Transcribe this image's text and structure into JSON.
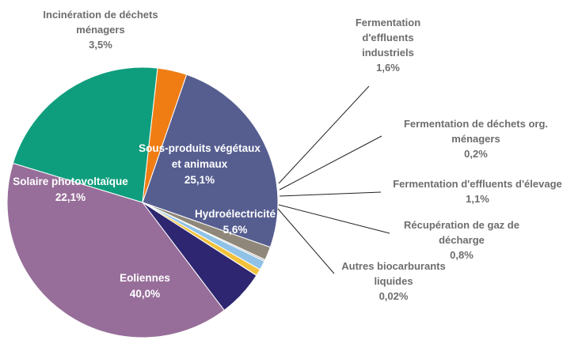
{
  "chart_data": {
    "type": "pie",
    "title": "",
    "slices": [
      {
        "name": "Sous-produits végétaux et animaux",
        "label_lines": [
          "Sous-produits végétaux",
          "et animaux"
        ],
        "value": 25.1,
        "value_label": "25,1%",
        "color": "#565e90",
        "label_position": "inside"
      },
      {
        "name": "Fermentation d'effluents industriels",
        "label_lines": [
          "Fermentation",
          "d'effluents",
          "industriels"
        ],
        "value": 1.6,
        "value_label": "1,6%",
        "color": "#8f8779",
        "label_position": "outside"
      },
      {
        "name": "Fermentation de déchets org. ménagers",
        "label_lines": [
          "Fermentation de déchets org.",
          "ménagers"
        ],
        "value": 0.2,
        "value_label": "0,2%",
        "color": "#b9b9b9",
        "label_position": "outside"
      },
      {
        "name": "Fermentation d'effluents d'élevage",
        "label_lines": [
          "Fermentation d'effluents d'élevage"
        ],
        "value": 1.1,
        "value_label": "1,1%",
        "color": "#8fc2e6",
        "label_position": "outside"
      },
      {
        "name": "Récupération de gaz de décharge",
        "label_lines": [
          "Récupération de gaz de",
          "décharge"
        ],
        "value": 0.8,
        "value_label": "0,8%",
        "color": "#f3c23c",
        "label_position": "outside"
      },
      {
        "name": "Autres biocarburants liquides",
        "label_lines": [
          "Autres biocarburants",
          "liquides"
        ],
        "value": 0.02,
        "value_label": "0,02%",
        "color": "#c9a227",
        "label_position": "outside"
      },
      {
        "name": "Hydroélectricité",
        "label_lines": [
          "Hydroélectricité"
        ],
        "value": 5.6,
        "value_label": "5,6%",
        "color": "#2e2670",
        "label_position": "inside"
      },
      {
        "name": "Eoliennes",
        "label_lines": [
          "Eoliennes"
        ],
        "value": 40.0,
        "value_label": "40,0%",
        "color": "#976e9a",
        "label_position": "inside"
      },
      {
        "name": "Solaire photovoltaïque",
        "label_lines": [
          "Solaire photovoltaïque"
        ],
        "value": 22.1,
        "value_label": "22,1%",
        "color": "#0f9e7d",
        "label_position": "inside"
      },
      {
        "name": "Incinération de déchets ménagers",
        "label_lines": [
          "Incinération de déchets",
          "ménagers"
        ],
        "value": 3.5,
        "value_label": "3,5%",
        "color": "#ef7d13",
        "label_position": "outside"
      }
    ],
    "start_angle_deg": 71
  }
}
